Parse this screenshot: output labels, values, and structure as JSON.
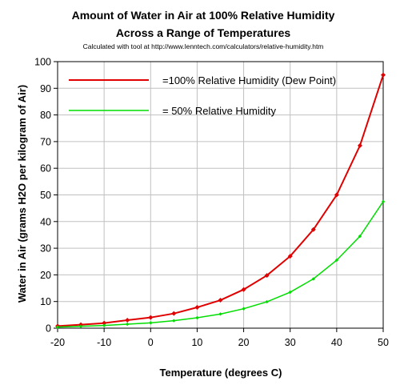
{
  "chart_data": {
    "type": "line",
    "title_line1": "Amount of Water in Air at 100% Relative Humidity",
    "title_line2": "Across a Range of Temperatures",
    "subtitle": "Calculated with tool at http://www.lenntech.com/calculators/relative-humidity.htm",
    "xlabel": "Temperature (degrees C)",
    "ylabel": "Water in Air (grams H2O per kilogram of Air)",
    "xlim": [
      -20,
      50
    ],
    "ylim": [
      0,
      100
    ],
    "x_ticks": [
      -20,
      -10,
      0,
      10,
      20,
      30,
      40,
      50
    ],
    "y_ticks": [
      0,
      10,
      20,
      30,
      40,
      50,
      60,
      70,
      80,
      90,
      100
    ],
    "grid": true,
    "legend_position": "top-left",
    "x": [
      -20,
      -15,
      -10,
      -5,
      0,
      5,
      10,
      15,
      20,
      25,
      30,
      35,
      40,
      45,
      50
    ],
    "series": [
      {
        "name": "=100% Relative Humidity (Dew Point)",
        "color": "#e00000",
        "values": [
          0.8,
          1.3,
          1.9,
          3.0,
          4.0,
          5.5,
          7.8,
          10.5,
          14.5,
          19.8,
          27.0,
          37.0,
          50.0,
          68.5,
          95.0
        ]
      },
      {
        "name": "=   50% Relative Humidity",
        "color": "#00dd00",
        "values": [
          0.4,
          0.7,
          1.0,
          1.5,
          2.0,
          2.8,
          3.9,
          5.3,
          7.3,
          9.9,
          13.5,
          18.5,
          25.5,
          34.5,
          47.5
        ]
      }
    ],
    "plot_background": "#ffffff",
    "grid_color": "#c0c0c0"
  }
}
